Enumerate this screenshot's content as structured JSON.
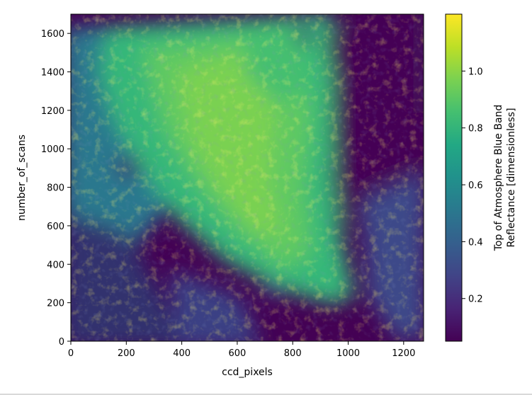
{
  "chart_data": {
    "type": "heatmap",
    "title": "",
    "xlabel": "ccd_pixels",
    "ylabel": "number_of_scans",
    "xlim": [
      0,
      1272
    ],
    "ylim": [
      0,
      1700
    ],
    "x_ticks": [
      0,
      200,
      400,
      600,
      800,
      1000,
      1200
    ],
    "y_ticks": [
      0,
      200,
      400,
      600,
      800,
      1000,
      1200,
      1400,
      1600
    ],
    "colorbar": {
      "label_lines": [
        "Top of Atmosphere Blue Band",
        "Reflectance [dimensionless]"
      ],
      "colormap": "viridis",
      "vmin": 0.05,
      "vmax": 1.2,
      "ticks": [
        0.2,
        0.4,
        0.6,
        0.8,
        1.0
      ],
      "tick_labels": [
        "0.2",
        "0.4",
        "0.6",
        "0.8",
        "1.0"
      ]
    },
    "field_description_levels": [
      {
        "region": "upper-left cloud mass",
        "level": 0.75
      },
      {
        "region": "central diagonal cloud band",
        "level": 0.85
      },
      {
        "region": "right clear area",
        "level": 0.1
      },
      {
        "region": "lower-left clear area",
        "level": 0.12
      }
    ]
  }
}
